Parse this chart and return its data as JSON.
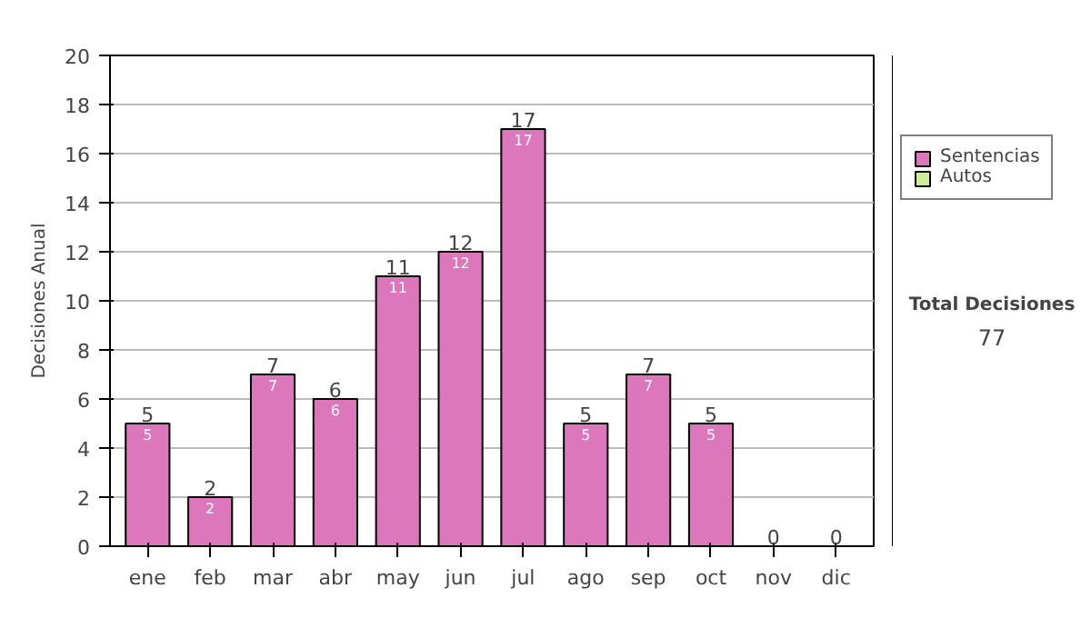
{
  "chart_data": {
    "type": "bar",
    "stacked": true,
    "ylabel": "Decisiones Anual",
    "categories": [
      "ene",
      "feb",
      "mar",
      "abr",
      "may",
      "jun",
      "jul",
      "ago",
      "sep",
      "oct",
      "nov",
      "dic"
    ],
    "series": [
      {
        "name": "Sentencias",
        "color": "#dd77bb",
        "values": [
          5,
          2,
          7,
          6,
          11,
          12,
          17,
          5,
          7,
          5,
          0,
          0
        ],
        "value_labels": [
          "5",
          "2",
          "7",
          "6",
          "11",
          "12",
          "17",
          "5",
          "7",
          "5",
          null,
          null
        ]
      },
      {
        "name": "Autos",
        "color": "#ccee99",
        "values": [
          0,
          0,
          0,
          0,
          0,
          0,
          0,
          0,
          0,
          0,
          0,
          0
        ]
      }
    ],
    "totals": [
      "5",
      "2",
      "7",
      "6",
      "11",
      "12",
      "17",
      "5",
      "7",
      "5",
      "0",
      "0"
    ],
    "ylim": [
      0,
      20
    ],
    "yticks": [
      0,
      2,
      4,
      6,
      8,
      10,
      12,
      14,
      16,
      18,
      20
    ],
    "grid": "y",
    "legend": "right",
    "annotations": [
      "Total Decisiones",
      "77"
    ]
  }
}
